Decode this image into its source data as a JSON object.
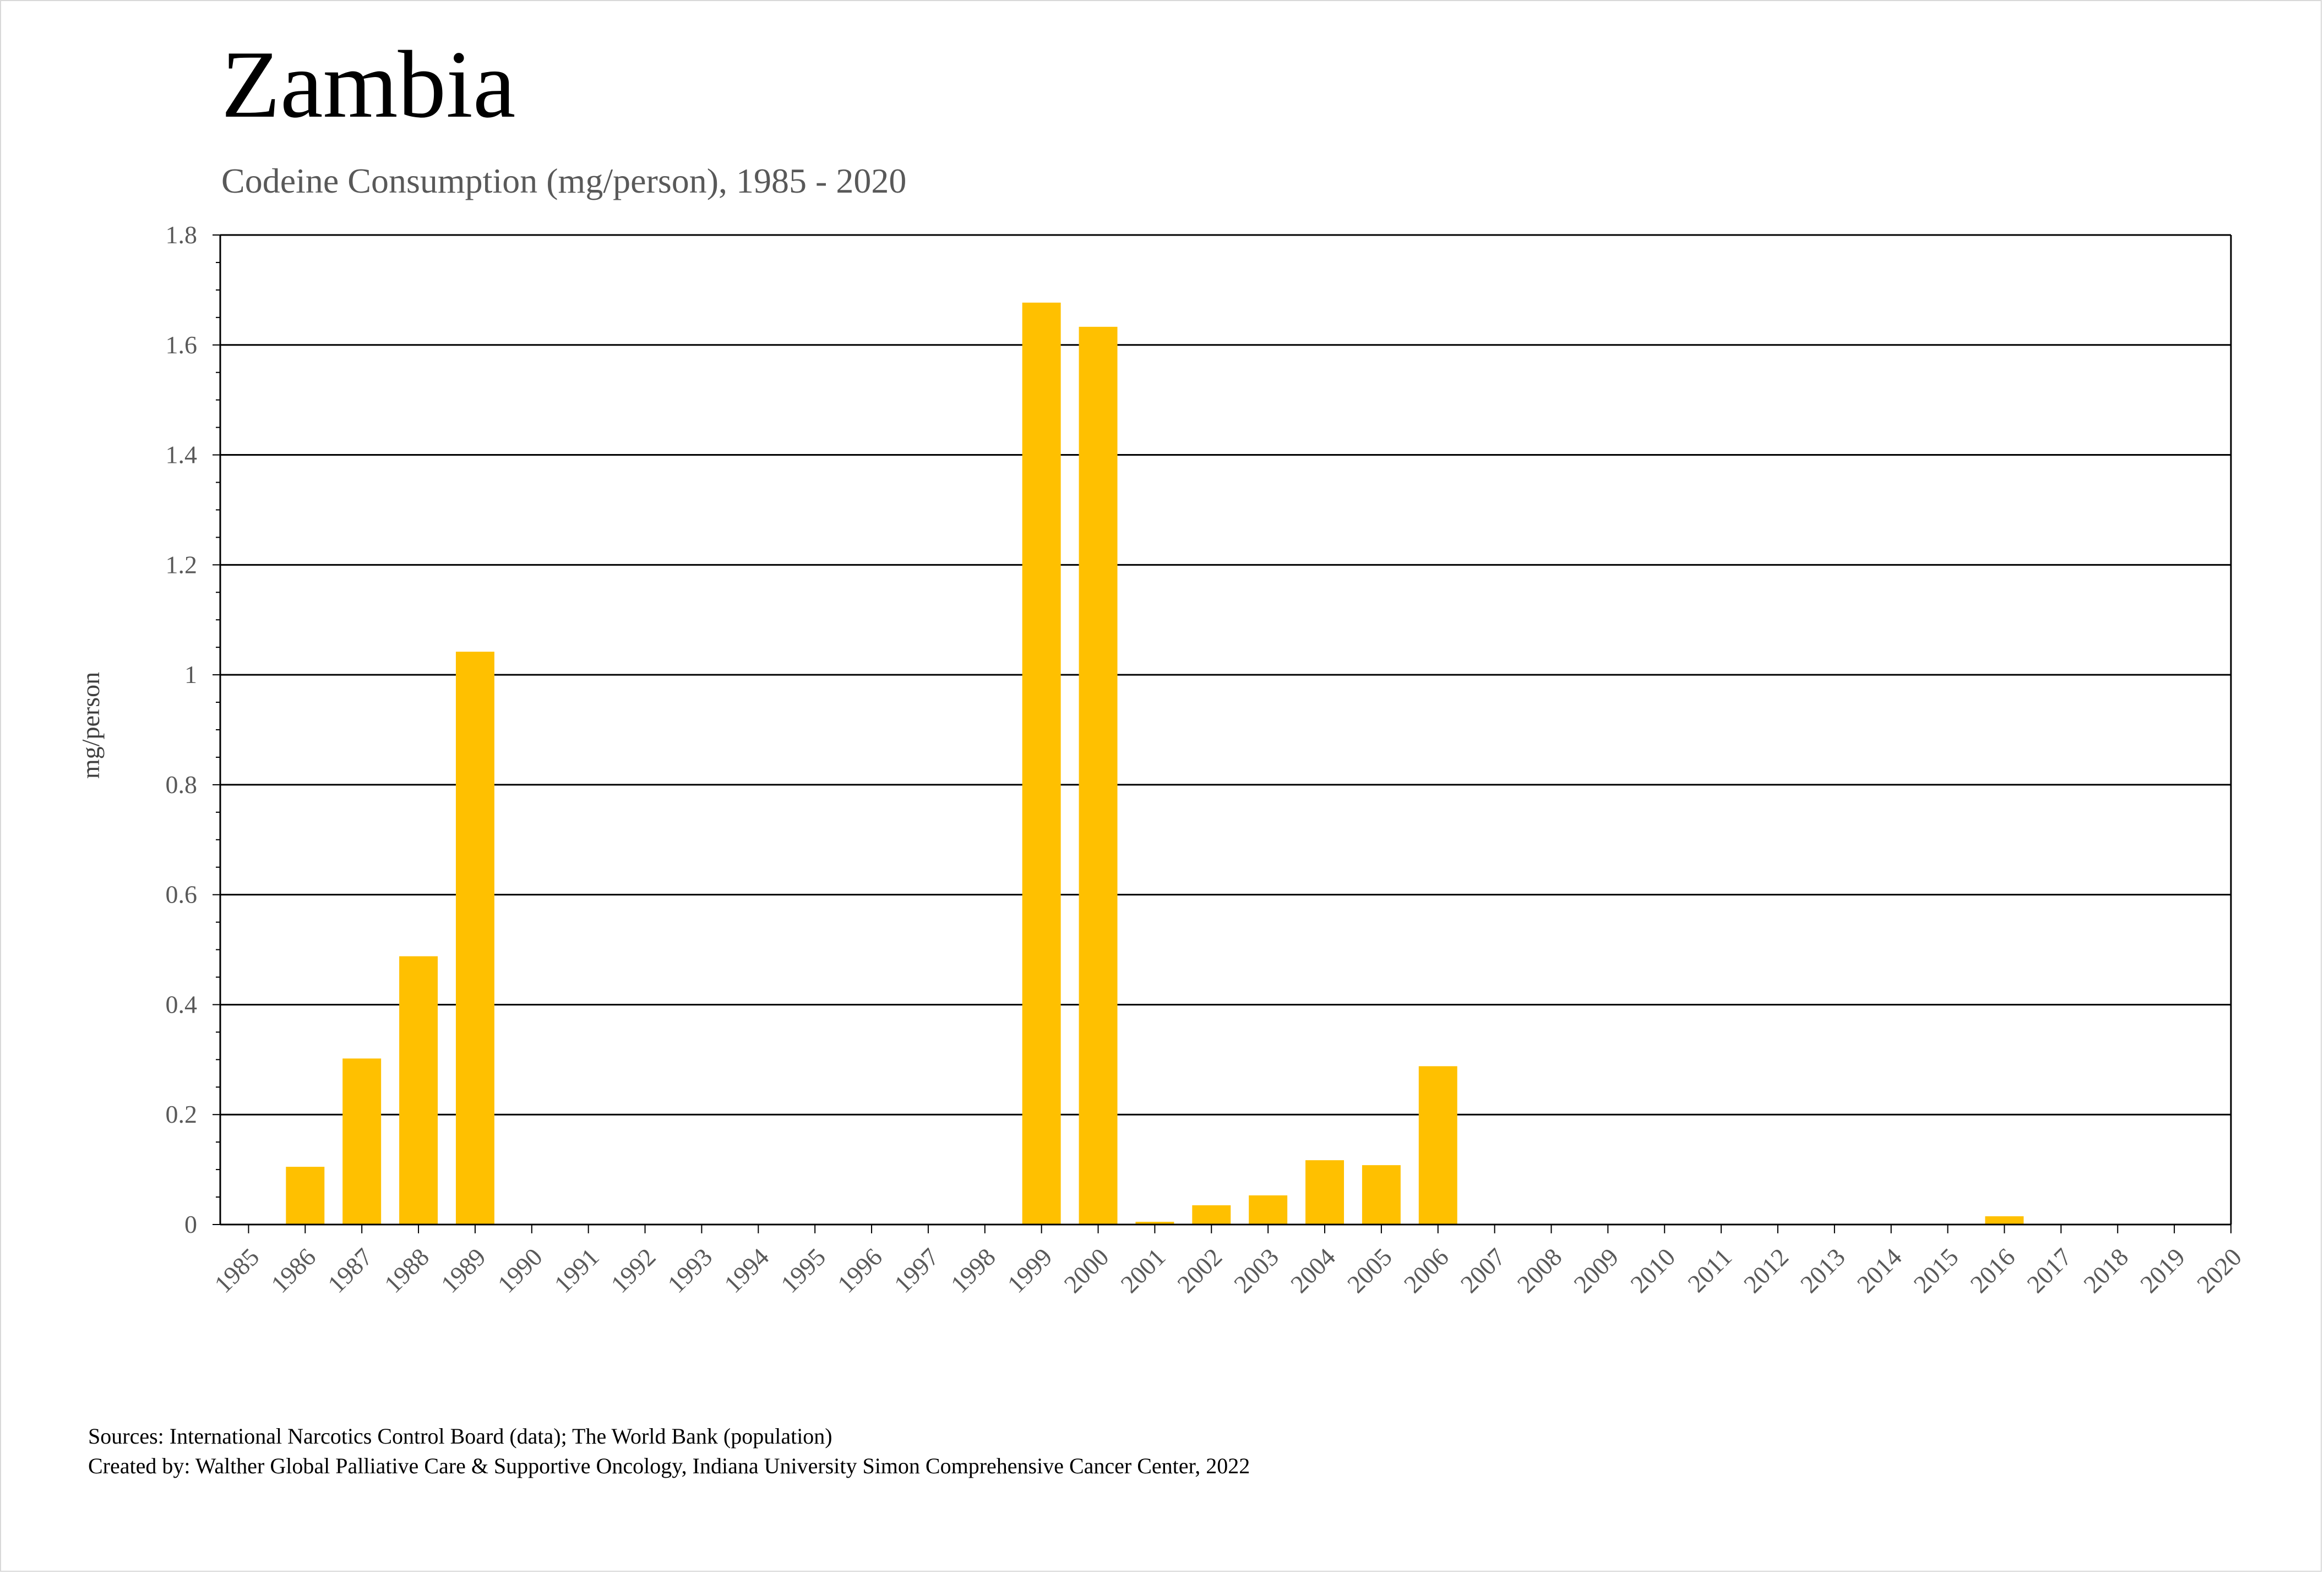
{
  "colors": {
    "bar": "#FFC000",
    "grid": "#000000",
    "subtitle": "#595959",
    "tick": "#595959"
  },
  "chart_data": {
    "type": "bar",
    "title": "Zambia",
    "subtitle": "Codeine Consumption (mg/person), 1985 - 2020",
    "xlabel": "",
    "ylabel": "mg/person",
    "ylim": [
      0,
      1.8
    ],
    "yticks": [
      0,
      0.2,
      0.4,
      0.6,
      0.8,
      1,
      1.2,
      1.4,
      1.6,
      1.8
    ],
    "ytick_labels": [
      "0",
      "0.2",
      "0.4",
      "0.6",
      "0.8",
      "1",
      "1.2",
      "1.4",
      "1.6",
      "1.8"
    ],
    "grid": true,
    "categories": [
      "1985",
      "1986",
      "1987",
      "1988",
      "1989",
      "1990",
      "1991",
      "1992",
      "1993",
      "1994",
      "1995",
      "1996",
      "1997",
      "1998",
      "1999",
      "2000",
      "2001",
      "2002",
      "2003",
      "2004",
      "2005",
      "2006",
      "2007",
      "2008",
      "2009",
      "2010",
      "2011",
      "2012",
      "2013",
      "2014",
      "2015",
      "2016",
      "2017",
      "2018",
      "2019",
      "2020"
    ],
    "values": [
      0,
      0.105,
      0.302,
      0.488,
      1.042,
      0,
      0,
      0,
      0,
      0,
      0,
      0,
      0,
      0,
      1.677,
      1.633,
      0.005,
      0.035,
      0.053,
      0.117,
      0.108,
      0.288,
      0,
      0,
      0,
      0,
      0,
      0,
      0,
      0,
      0,
      0.015,
      0,
      0,
      0,
      0
    ]
  },
  "footer": {
    "sources": "Sources: International Narcotics Control Board (data); The World Bank (population)",
    "created_by": "Created by: Walther Global Palliative Care & Supportive Oncology, Indiana University Simon Comprehensive Cancer Center, 2022"
  }
}
